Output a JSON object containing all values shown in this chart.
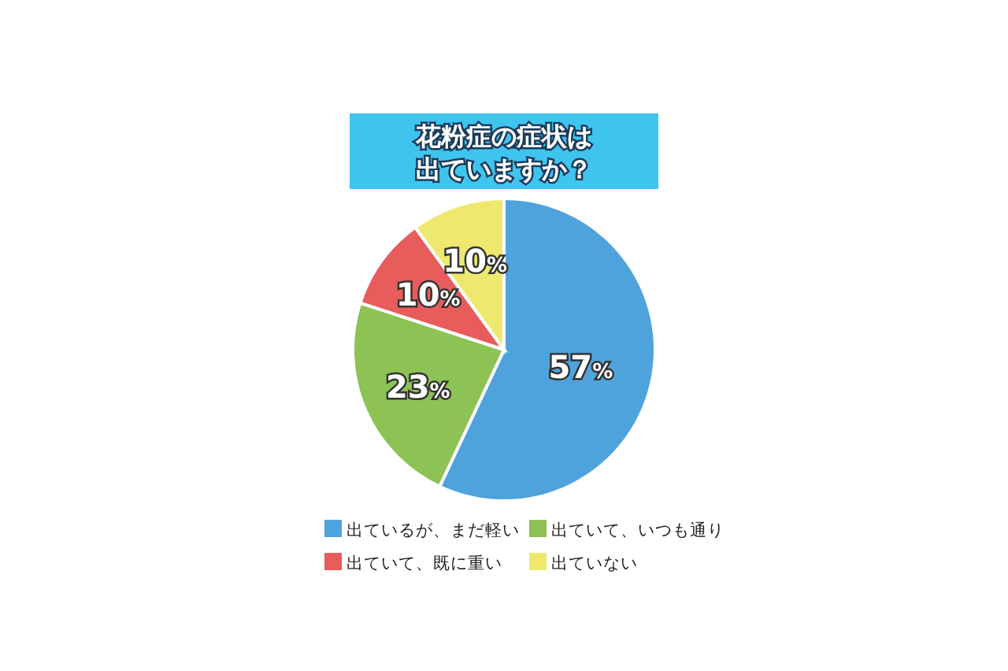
{
  "chart_data": {
    "type": "pie",
    "title": "花粉症の症状は出ていますか？",
    "categories": [
      "出ているが、まだ軽い",
      "出ていて、いつも通り",
      "出ていて、既に重い",
      "出ていない"
    ],
    "values": [
      57,
      23,
      10,
      10
    ],
    "colors": [
      "#4fa3dc",
      "#8dc255",
      "#e85c5c",
      "#eee96e"
    ],
    "value_labels": [
      "57%",
      "23%",
      "10%",
      "10%"
    ],
    "legend": "bottom"
  }
}
